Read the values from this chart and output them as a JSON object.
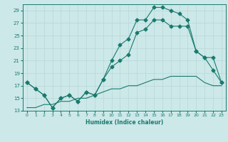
{
  "background_color": "#cce8e8",
  "grid_color": "#b8d8d8",
  "line_color": "#1a7a6e",
  "xlabel": "Humidex (Indice chaleur)",
  "xlim": [
    -0.5,
    23.5
  ],
  "ylim": [
    13,
    30
  ],
  "yticks": [
    13,
    15,
    17,
    19,
    21,
    23,
    25,
    27,
    29
  ],
  "xticks": [
    0,
    1,
    2,
    3,
    4,
    5,
    6,
    7,
    8,
    9,
    10,
    11,
    12,
    13,
    14,
    15,
    16,
    17,
    18,
    19,
    20,
    21,
    22,
    23
  ],
  "line1_x": [
    0,
    1,
    2,
    3,
    4,
    5,
    6,
    7,
    8,
    9,
    10,
    11,
    12,
    13,
    14,
    15,
    16,
    17,
    18,
    19,
    20,
    21,
    22,
    23
  ],
  "line1_y": [
    17.5,
    16.5,
    15.5,
    13.5,
    15.0,
    15.5,
    14.5,
    16.0,
    15.5,
    18.0,
    21.0,
    23.5,
    24.5,
    27.5,
    27.5,
    29.5,
    29.5,
    29.0,
    28.5,
    27.5,
    22.5,
    21.5,
    19.5,
    17.5
  ],
  "line2_x": [
    0,
    1,
    2,
    3,
    4,
    5,
    6,
    7,
    8,
    9,
    10,
    11,
    12,
    13,
    14,
    15,
    16,
    17,
    18,
    19,
    20,
    21,
    22,
    23
  ],
  "line2_y": [
    17.5,
    16.5,
    15.5,
    13.5,
    15.0,
    15.5,
    14.5,
    16.0,
    15.5,
    18.0,
    20.0,
    21.0,
    22.0,
    25.5,
    26.0,
    27.5,
    27.5,
    26.5,
    26.5,
    26.5,
    22.5,
    21.5,
    21.5,
    17.5
  ],
  "line3_x": [
    0,
    1,
    2,
    3,
    4,
    5,
    6,
    7,
    8,
    9,
    10,
    11,
    12,
    13,
    14,
    15,
    16,
    17,
    18,
    19,
    20,
    21,
    22,
    23
  ],
  "line3_y": [
    13.5,
    13.5,
    14.0,
    14.0,
    14.5,
    14.5,
    15.0,
    15.0,
    15.5,
    16.0,
    16.5,
    16.5,
    17.0,
    17.0,
    17.5,
    18.0,
    18.0,
    18.5,
    18.5,
    18.5,
    18.5,
    17.5,
    17.0,
    17.0
  ]
}
